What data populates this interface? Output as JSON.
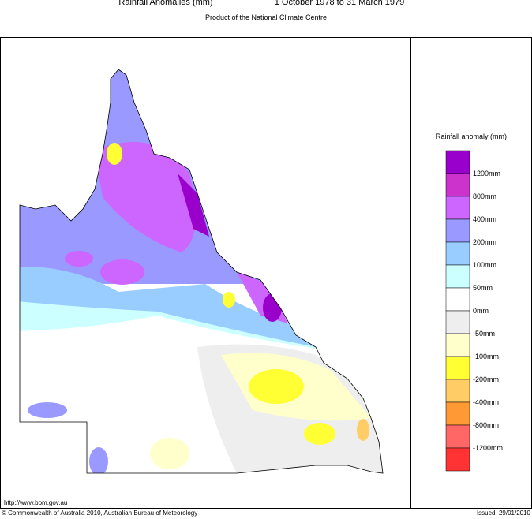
{
  "header": {
    "title": "Rainfall Anomalies (mm)",
    "period": "1 October 1978 to 31 March 1979",
    "subtitle": "Product of the National Climate Centre"
  },
  "legend": {
    "title": "Rainfall anomaly (mm)",
    "colors": [
      "#9900cc",
      "#cc33cc",
      "#cc66ff",
      "#9999ff",
      "#99ccff",
      "#ccffff",
      "#ffffff",
      "#eeeeee",
      "#ffffcc",
      "#ffff33",
      "#ffcc66",
      "#ff9933",
      "#ff6666",
      "#ff3333"
    ],
    "labels": [
      "1200mm",
      "800mm",
      "400mm",
      "200mm",
      "100mm",
      "50mm",
      "0mm",
      "-50mm",
      "-100mm",
      "-200mm",
      "-400mm",
      "-800mm",
      "-1200mm"
    ]
  },
  "footer": {
    "url": "http://www.bom.gov.au",
    "copyright": "© Commonwealth of Australia 2010, Australian Bureau of Meteorology",
    "issued": "Issued: 29/01/2010"
  }
}
